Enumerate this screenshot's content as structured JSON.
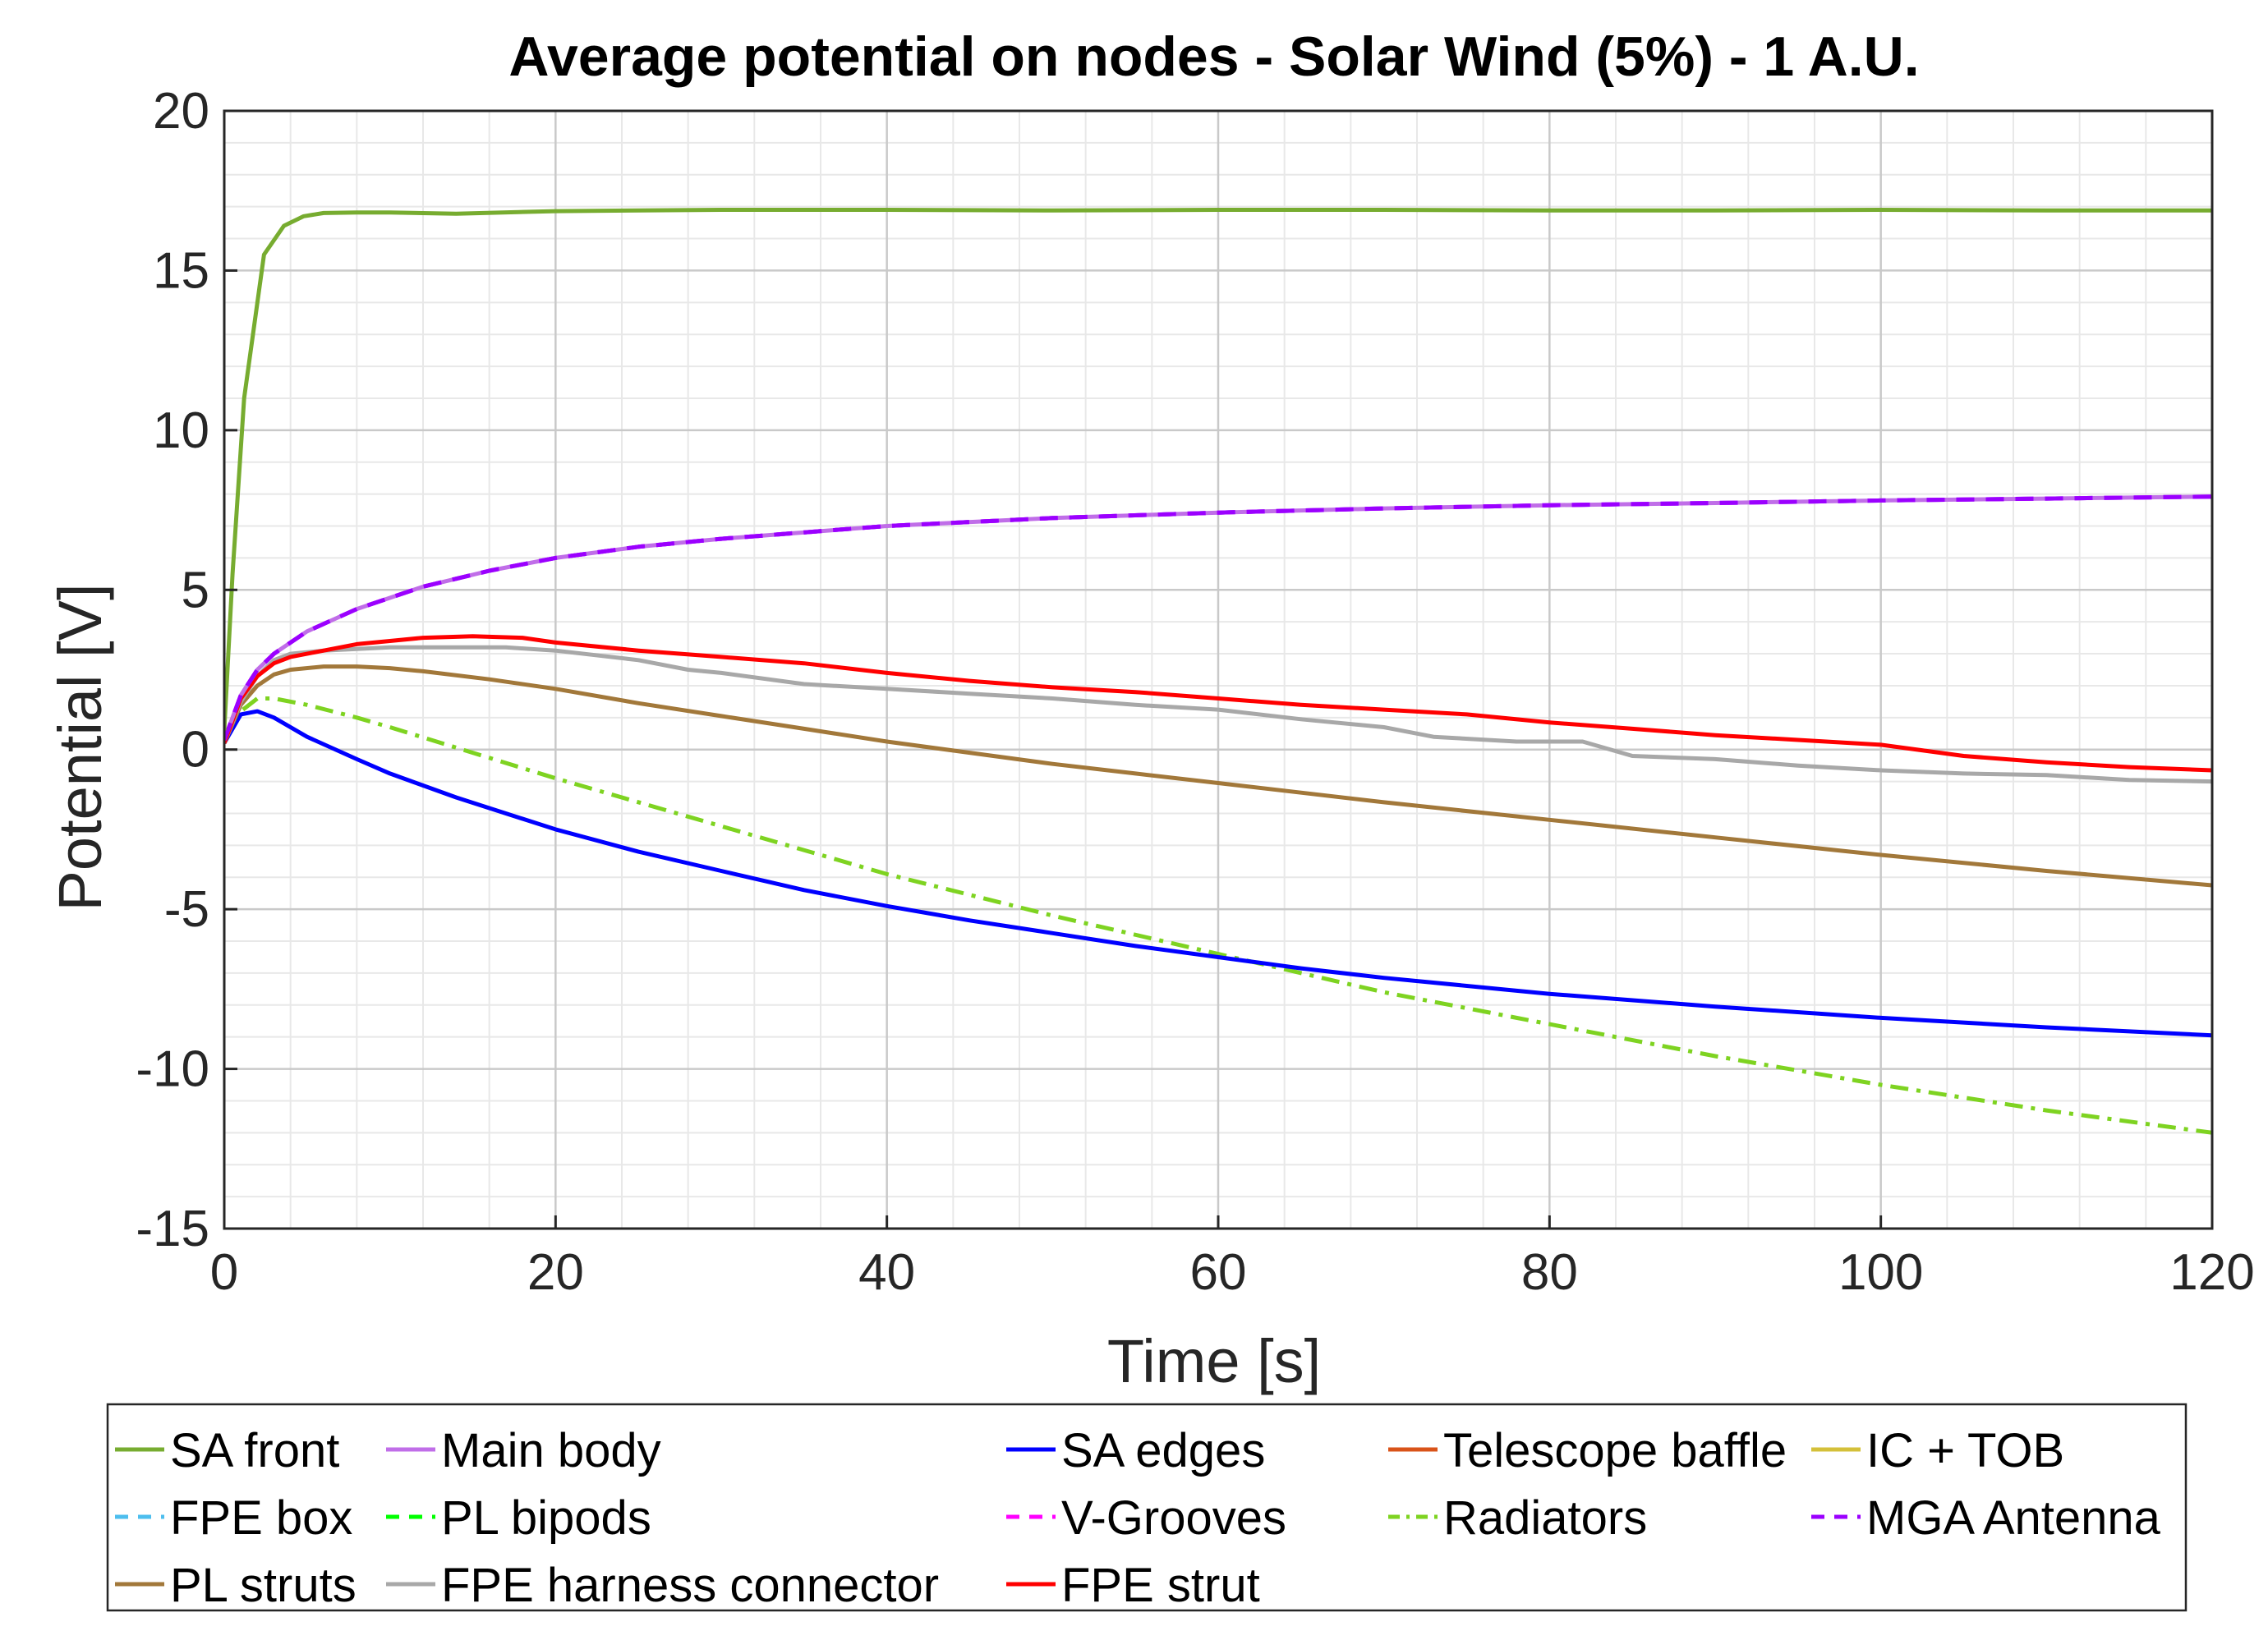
{
  "chart_data": {
    "type": "line",
    "title": "Average potential on nodes - Solar Wind (5%) - 1 A.U.",
    "xlabel": "Time [s]",
    "ylabel": "Potential [V]",
    "xlim": [
      0,
      120
    ],
    "ylim": [
      -15,
      20
    ],
    "xticks": [
      0,
      20,
      40,
      60,
      80,
      100,
      120
    ],
    "xtick_labels": [
      "0",
      "20",
      "40",
      "60",
      "80",
      "100",
      "120"
    ],
    "yticks": [
      -15,
      -10,
      -5,
      0,
      5,
      10,
      15,
      20
    ],
    "ytick_labels": [
      "-15",
      "-10",
      "-5",
      "0",
      "5",
      "10",
      "15",
      "20"
    ],
    "grid": "on",
    "minor_grid": "on",
    "legend_position": "bottom",
    "series": [
      {
        "name": "SA front",
        "color": "#77ac30",
        "dash": "solid",
        "x": [
          0,
          0.5,
          1.2,
          2.4,
          3.6,
          4.8,
          6,
          8,
          10,
          14,
          20,
          30,
          40,
          50,
          60,
          70,
          80,
          90,
          100,
          110,
          120
        ],
        "y": [
          0.6,
          5.5,
          11,
          15.5,
          16.4,
          16.7,
          16.8,
          16.82,
          16.82,
          16.78,
          16.86,
          16.9,
          16.9,
          16.88,
          16.9,
          16.9,
          16.88,
          16.88,
          16.9,
          16.88,
          16.88
        ]
      },
      {
        "name": "Main body",
        "color": "#c06ee8",
        "dash": "solid",
        "x": [
          0,
          1,
          2,
          3,
          5,
          8,
          12,
          16,
          20,
          25,
          30,
          40,
          50,
          60,
          70,
          80,
          90,
          100,
          110,
          120
        ],
        "y": [
          0.3,
          1.7,
          2.5,
          3.0,
          3.7,
          4.4,
          5.1,
          5.6,
          6.0,
          6.35,
          6.6,
          7.0,
          7.25,
          7.42,
          7.55,
          7.65,
          7.72,
          7.8,
          7.86,
          7.92
        ]
      },
      {
        "name": "SA edges",
        "color": "#0000ff",
        "dash": "solid",
        "x": [
          0,
          1,
          2,
          3,
          5,
          8,
          10,
          14,
          20,
          25,
          30,
          35,
          40,
          45,
          50,
          55,
          60,
          65,
          70,
          80,
          90,
          100,
          110,
          120
        ],
        "y": [
          0.2,
          1.1,
          1.2,
          1.0,
          0.4,
          -0.3,
          -0.75,
          -1.5,
          -2.5,
          -3.2,
          -3.8,
          -4.4,
          -4.9,
          -5.35,
          -5.75,
          -6.15,
          -6.5,
          -6.85,
          -7.15,
          -7.65,
          -8.05,
          -8.4,
          -8.7,
          -8.95
        ]
      },
      {
        "name": "Telescope baffle",
        "color": "#d95319",
        "dash": "solid",
        "x": [],
        "y": []
      },
      {
        "name": "IC + TOB",
        "color": "#d4c03a",
        "dash": "solid",
        "x": [],
        "y": []
      },
      {
        "name": "FPE box",
        "color": "#4dbeee",
        "dash": "dashed",
        "x": [
          0,
          1,
          2,
          3,
          5,
          8,
          12,
          16,
          20,
          25,
          30,
          40,
          50,
          60,
          70,
          80,
          90,
          100,
          110,
          120
        ],
        "y": [
          0.3,
          1.7,
          2.5,
          3.0,
          3.7,
          4.4,
          5.1,
          5.6,
          6.0,
          6.35,
          6.6,
          7.0,
          7.25,
          7.42,
          7.55,
          7.65,
          7.72,
          7.8,
          7.86,
          7.92
        ]
      },
      {
        "name": "PL bipods",
        "color": "#00ff00",
        "dash": "dashed",
        "x": [],
        "y": []
      },
      {
        "name": "V-Grooves",
        "color": "#ff00ff",
        "dash": "dashed",
        "x": [
          0,
          1,
          2,
          3,
          5,
          8,
          12,
          16,
          20,
          25,
          30,
          40,
          50,
          60,
          70,
          80,
          90,
          100,
          110,
          120
        ],
        "y": [
          0.3,
          1.7,
          2.5,
          3.0,
          3.7,
          4.4,
          5.1,
          5.6,
          6.0,
          6.35,
          6.6,
          7.0,
          7.25,
          7.42,
          7.55,
          7.65,
          7.72,
          7.8,
          7.86,
          7.92
        ]
      },
      {
        "name": "Radiators",
        "color": "#7ed321",
        "dash": "dashdot",
        "x": [
          0,
          1,
          2,
          3,
          5,
          8,
          10,
          15,
          20,
          30,
          40,
          50,
          60,
          70,
          80,
          90,
          100,
          110,
          120
        ],
        "y": [
          0.2,
          1.2,
          1.6,
          1.6,
          1.4,
          1.0,
          0.7,
          -0.1,
          -0.9,
          -2.4,
          -3.9,
          -5.2,
          -6.4,
          -7.6,
          -8.6,
          -9.6,
          -10.5,
          -11.3,
          -12.0
        ]
      },
      {
        "name": "MGA Antenna",
        "color": "#9b00ff",
        "dash": "dashed",
        "x": [
          0,
          1,
          2,
          3,
          5,
          8,
          12,
          16,
          20,
          25,
          30,
          40,
          50,
          60,
          70,
          80,
          90,
          100,
          110,
          120
        ],
        "y": [
          0.3,
          1.7,
          2.5,
          3.0,
          3.7,
          4.4,
          5.1,
          5.6,
          6.0,
          6.35,
          6.6,
          7.0,
          7.25,
          7.42,
          7.55,
          7.65,
          7.72,
          7.8,
          7.86,
          7.92
        ]
      },
      {
        "name": "PL struts",
        "color": "#a2783a",
        "dash": "solid",
        "x": [
          0,
          1,
          2,
          3,
          4,
          6,
          8,
          10,
          12,
          16,
          20,
          25,
          30,
          35,
          40,
          45,
          50,
          55,
          60,
          65,
          70,
          80,
          90,
          100,
          110,
          120
        ],
        "y": [
          0.2,
          1.4,
          2.0,
          2.35,
          2.5,
          2.6,
          2.6,
          2.55,
          2.45,
          2.2,
          1.9,
          1.45,
          1.05,
          0.65,
          0.25,
          -0.1,
          -0.45,
          -0.75,
          -1.05,
          -1.35,
          -1.65,
          -2.2,
          -2.75,
          -3.3,
          -3.8,
          -4.25
        ]
      },
      {
        "name": "FPE harness connector",
        "color": "#a8a8a8",
        "dash": "solid",
        "x": [
          0,
          1,
          2,
          3,
          4,
          6,
          8,
          10,
          12,
          15,
          17,
          20,
          25,
          28,
          30,
          35,
          40,
          45,
          50,
          55,
          60,
          65,
          70,
          73,
          78,
          82,
          85,
          90,
          95,
          100,
          105,
          110,
          115,
          120
        ],
        "y": [
          0.2,
          1.5,
          2.3,
          2.8,
          3.0,
          3.1,
          3.15,
          3.2,
          3.2,
          3.2,
          3.2,
          3.1,
          2.8,
          2.5,
          2.4,
          2.05,
          1.9,
          1.75,
          1.6,
          1.4,
          1.25,
          0.95,
          0.7,
          0.4,
          0.25,
          0.25,
          -0.2,
          -0.3,
          -0.5,
          -0.65,
          -0.75,
          -0.8,
          -0.95,
          -1.0
        ]
      },
      {
        "name": "FPE strut",
        "color": "#ff0000",
        "dash": "solid",
        "x": [
          0,
          1,
          2,
          3,
          4,
          6,
          8,
          10,
          12,
          15,
          18,
          20,
          25,
          30,
          35,
          40,
          45,
          50,
          55,
          60,
          65,
          70,
          75,
          80,
          85,
          90,
          95,
          100,
          105,
          110,
          115,
          120
        ],
        "y": [
          0.2,
          1.6,
          2.3,
          2.7,
          2.9,
          3.1,
          3.3,
          3.4,
          3.5,
          3.55,
          3.5,
          3.35,
          3.1,
          2.9,
          2.7,
          2.4,
          2.15,
          1.95,
          1.8,
          1.6,
          1.4,
          1.25,
          1.1,
          0.85,
          0.65,
          0.45,
          0.3,
          0.15,
          -0.2,
          -0.4,
          -0.55,
          -0.65
        ]
      }
    ]
  }
}
